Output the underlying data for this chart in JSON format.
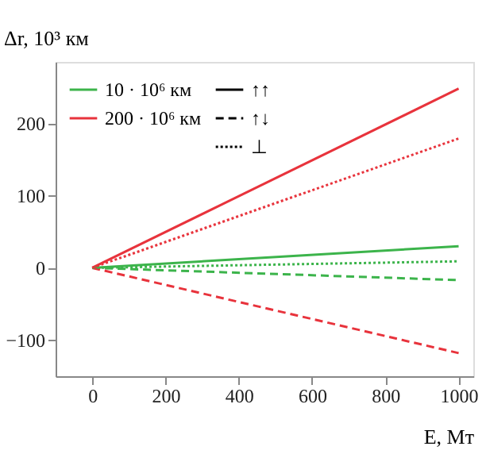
{
  "chart_data": {
    "type": "line",
    "xlabel": "E, Мт",
    "ylabel": "Δr, 10³ км",
    "x": [
      0,
      1000
    ],
    "series": [
      {
        "name": "10 · 10⁶ км",
        "color": "#3cb44b",
        "line_style": "solid",
        "values": [
          0,
          30
        ]
      },
      {
        "name": "200 · 10⁶ км",
        "color": "#e8333c",
        "line_style": "solid",
        "values": [
          0,
          248
        ]
      },
      {
        "color": "#3cb44b",
        "line_style": "dashed",
        "values": [
          0,
          -17
        ]
      },
      {
        "color": "#e8333c",
        "line_style": "dashed",
        "values": [
          0,
          -118
        ]
      },
      {
        "color": "#3cb44b",
        "line_style": "dotted",
        "values": [
          0,
          9
        ]
      },
      {
        "color": "#e8333c",
        "line_style": "dotted",
        "values": [
          0,
          179
        ]
      }
    ],
    "annotations": [
      "↑↑",
      "↑↓",
      "⊥"
    ],
    "xlim": [
      -100,
      1040
    ],
    "ylim": [
      -150,
      285
    ],
    "xticks": [
      0,
      200,
      400,
      600,
      800,
      1000
    ],
    "yticks": [
      -100,
      0,
      100,
      200
    ],
    "grid": false,
    "legend": "top left",
    "marker": "none"
  }
}
